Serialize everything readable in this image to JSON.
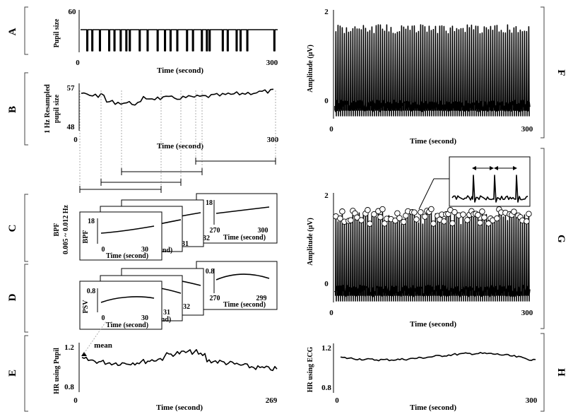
{
  "panels": {
    "A": {
      "letter": "A",
      "ylabel": "Pupil size",
      "ymax": "60",
      "xmin": "0",
      "xmax": "300",
      "xlabel": "Time (second)"
    },
    "B": {
      "letter": "B",
      "ylabel1": "1 Hz Resampled",
      "ylabel2": "pupil size",
      "ymax": "57",
      "ymin": "48",
      "xmin": "0",
      "xmax": "300",
      "xlabel": "Time (second)"
    },
    "C": {
      "letter": "C",
      "ylabel1": "BPF",
      "ylabel2": "0.005 ~ 0.012 Hz",
      "front": {
        "ylabel": "BPF",
        "ymax": "18",
        "xmin": "0",
        "xmax": "30",
        "xlabel": "Time (second)"
      },
      "back": {
        "ymax": "18",
        "xmin": "270",
        "xmax": "300",
        "xlabel": "Time (second)"
      },
      "mid_ticks": [
        "31",
        "32"
      ],
      "frag_label": "nd)"
    },
    "D": {
      "letter": "D",
      "front": {
        "ylabel": "PSV",
        "ymax": "0.8",
        "xmin": "0",
        "xmax": "30",
        "xlabel": "Time (second)"
      },
      "back": {
        "ymax": "0.8",
        "xmin": "270",
        "xmax": "299",
        "xlabel": "Time (second)"
      },
      "mid_ticks": [
        "31",
        "32"
      ],
      "frag_label": "nd)"
    },
    "E": {
      "letter": "E",
      "ylabel": "HR using Pupil",
      "ymax": "1.2",
      "ymin": "0.8",
      "xmin": "0",
      "xmax": "269",
      "xlabel": "Time (second)",
      "annotation": "mean"
    },
    "F": {
      "letter": "F",
      "ylabel": "Amplitude (μV)",
      "ymax": "2",
      "ymid": "0",
      "xmin": "0",
      "xmax": "300",
      "xlabel": "Time (second)"
    },
    "G": {
      "letter": "G",
      "ylabel": "Amplitude (μV)",
      "ymax": "2",
      "ymid": "0",
      "xmin": "0",
      "xmax": "300",
      "xlabel": "Time (second)"
    },
    "H": {
      "letter": "H",
      "ylabel": "HR using ECG",
      "ymax": "1.2",
      "ymin": "0.8",
      "xmin": "0",
      "xmax": "300",
      "xlabel": "Time (second)"
    }
  }
}
